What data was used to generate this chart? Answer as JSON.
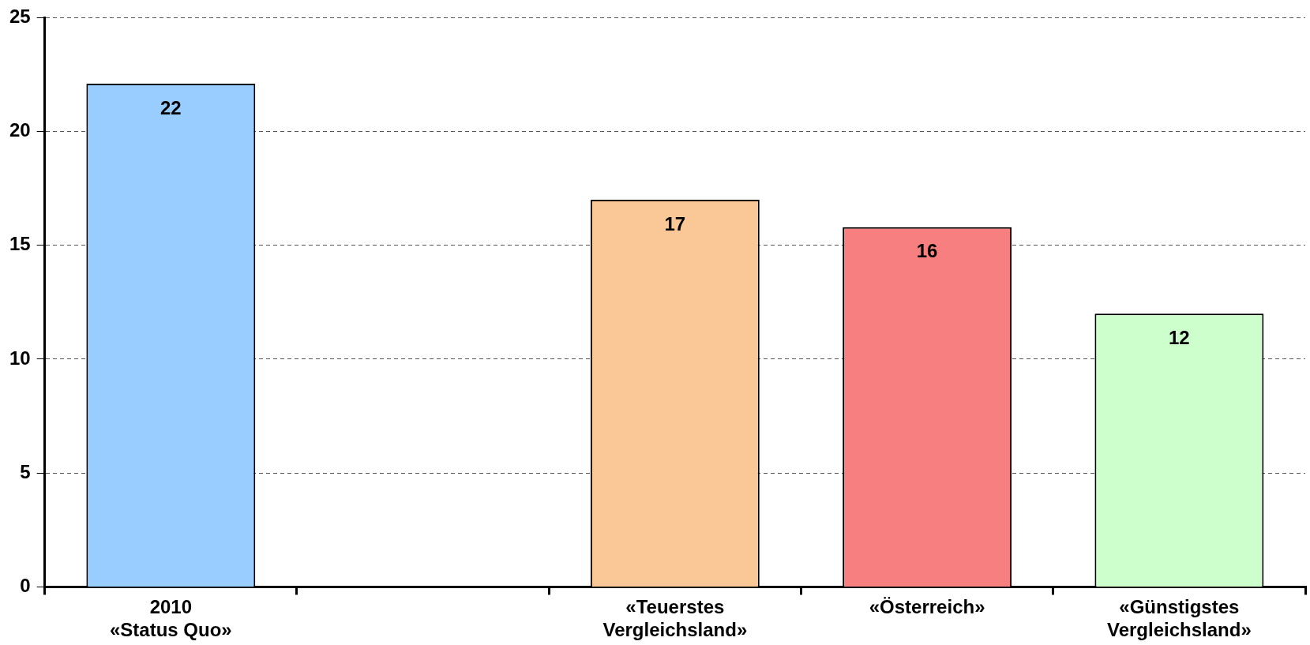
{
  "chart_data": {
    "type": "bar",
    "categories": [
      "2010\n«Status Quo»",
      null,
      "«Teuerstes\nVergleichsland»",
      "«Österreich»",
      "«Günstigstes\nVergleichsland»"
    ],
    "values": [
      22.1,
      null,
      17,
      15.8,
      12
    ],
    "value_labels": [
      "22",
      null,
      "17",
      "16",
      "12"
    ],
    "colors": [
      "#99ccff",
      "#cccccc",
      "#fac896",
      "#f87f7f",
      "#ccffcc"
    ],
    "ylim": [
      0,
      25
    ],
    "yticks": [
      0,
      5,
      10,
      15,
      20,
      25
    ],
    "grid": "y"
  }
}
